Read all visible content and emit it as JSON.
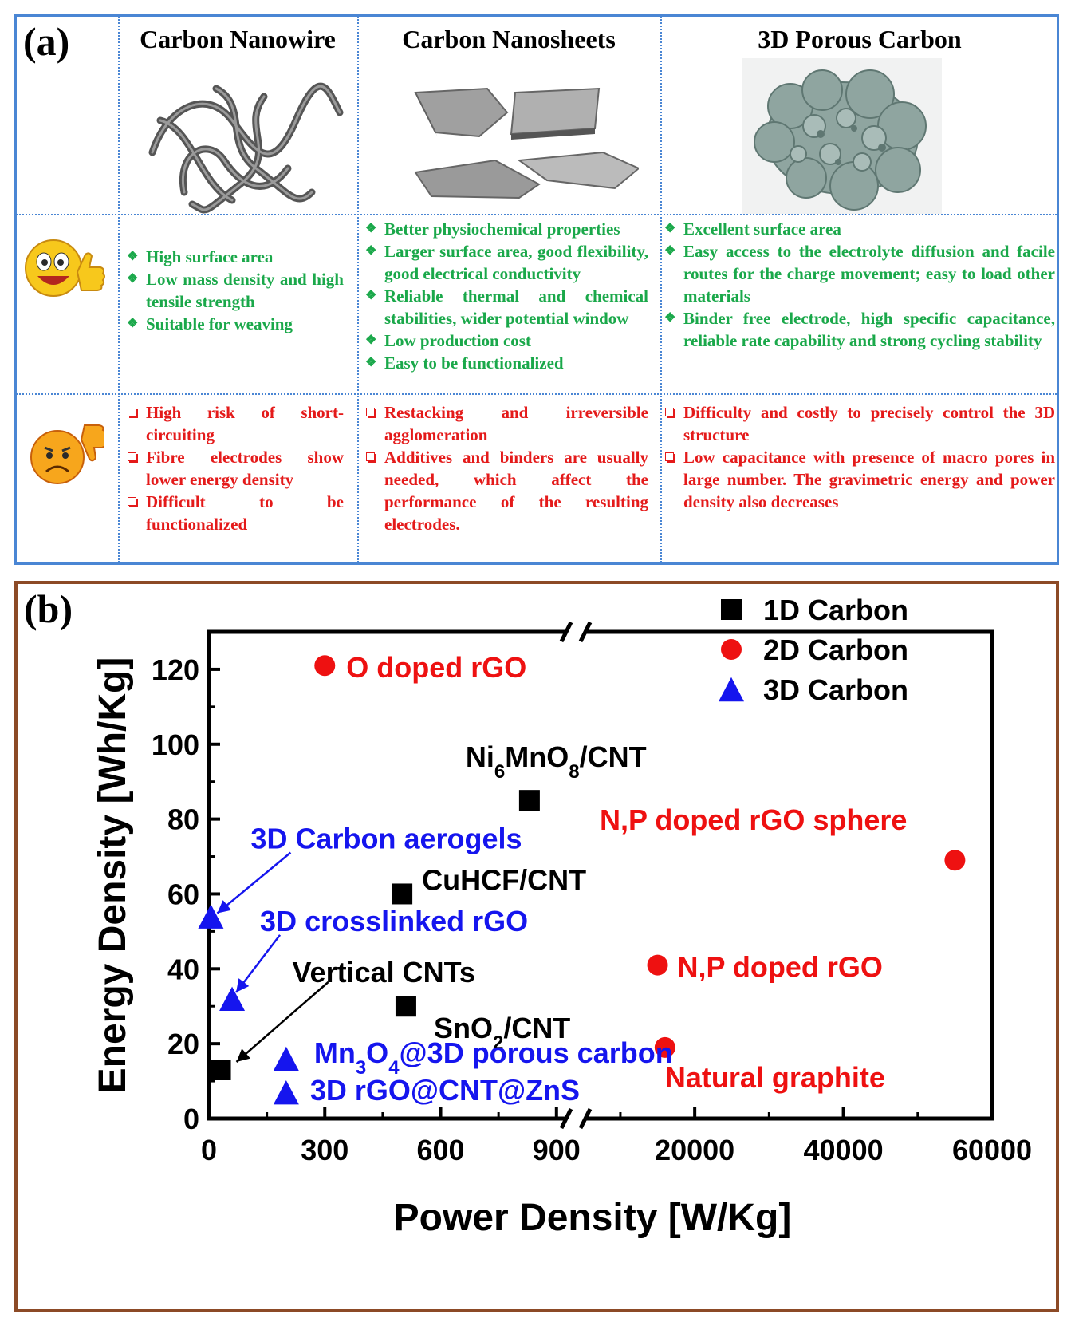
{
  "panel_a": {
    "label": "(a)",
    "columns": [
      {
        "title": "Carbon Nanowire",
        "pros": [
          "High surface area",
          "Low mass density and high tensile strength",
          "Suitable for weaving"
        ],
        "cons": [
          "High risk of short-circuiting",
          "Fibre electrodes show lower energy density",
          "Difficult to be functionalized"
        ]
      },
      {
        "title": "Carbon Nanosheets",
        "pros": [
          "Better physiochemical properties",
          "Larger surface area, good flexibility, good electrical conductivity",
          "Reliable thermal and chemical stabilities, wider potential window",
          "Low production cost",
          "Easy to be functionalized"
        ],
        "cons": [
          "Restacking and irreversible agglomeration",
          "Additives and binders are usually needed, which affect the performance of the resulting electrodes."
        ]
      },
      {
        "title": "3D Porous Carbon",
        "pros": [
          "Excellent surface area",
          "Easy access to the electrolyte diffusion and facile routes for the charge movement; easy to load other materials",
          "Binder free electrode, high specific capacitance, reliable rate capability and strong cycling stability"
        ],
        "cons": [
          "Difficulty and costly to precisely control the 3D structure",
          "Low capacitance with presence of macro pores in large number. The gravimetric energy and power density also decreases"
        ]
      }
    ],
    "colors": {
      "pros": "#1aa84a",
      "cons": "#e41a1a",
      "border": "#4a86d4"
    }
  },
  "panel_b": {
    "label": "(b)"
  },
  "chart_data": {
    "type": "scatter",
    "xlabel": "Power Density [W/Kg]",
    "ylabel": "Energy Density [Wh/Kg]",
    "ylim": [
      0,
      130
    ],
    "yticks": [
      0,
      20,
      40,
      60,
      80,
      100,
      120
    ],
    "x_axis_segments": [
      {
        "range": [
          0,
          950
        ],
        "ticks": [
          0,
          300,
          600,
          900
        ]
      },
      {
        "range": [
          4000,
          60000
        ],
        "ticks": [
          20000,
          40000,
          60000
        ]
      }
    ],
    "x_ticklabels": [
      "0",
      "300",
      "600",
      "900",
      "20000",
      "40000",
      "60000"
    ],
    "axis_break": "between 900 and 20000",
    "legend": {
      "placement": "top-right",
      "entries": [
        {
          "name": "1D Carbon",
          "marker": "square",
          "color": "#000000"
        },
        {
          "name": "2D Carbon",
          "marker": "circle",
          "color": "#ee1111"
        },
        {
          "name": "3D Carbon",
          "marker": "triangle",
          "color": "#1515ee"
        }
      ]
    },
    "series": [
      {
        "name": "1D Carbon",
        "marker": "square",
        "color": "#000000",
        "points": [
          {
            "x": 830,
            "y": 85,
            "label": "Ni6MnO8/CNT"
          },
          {
            "x": 500,
            "y": 60,
            "label": "CuHCF/CNT"
          },
          {
            "x": 510,
            "y": 30,
            "label": "SnO2/CNT"
          },
          {
            "x": 30,
            "y": 13,
            "label": "Vertical CNTs"
          }
        ]
      },
      {
        "name": "2D Carbon",
        "marker": "circle",
        "color": "#ee1111",
        "points": [
          {
            "x": 300,
            "y": 121,
            "label": "O doped rGO"
          },
          {
            "x": 55000,
            "y": 69,
            "label": "N,P doped rGO sphere"
          },
          {
            "x": 15000,
            "y": 41,
            "label": "N,P doped rGO"
          },
          {
            "x": 16000,
            "y": 19,
            "label": "Natural graphite"
          }
        ]
      },
      {
        "name": "3D Carbon",
        "marker": "triangle",
        "color": "#1515ee",
        "points": [
          {
            "x": 5,
            "y": 54,
            "label": "3D Carbon aerogels"
          },
          {
            "x": 60,
            "y": 32,
            "label": "3D crosslinked rGO"
          },
          {
            "x": 200,
            "y": 16,
            "label": "Mn3O4@3D porous carbon"
          },
          {
            "x": 200,
            "y": 7,
            "label": "3D rGO@CNT@ZnS"
          }
        ]
      }
    ]
  }
}
